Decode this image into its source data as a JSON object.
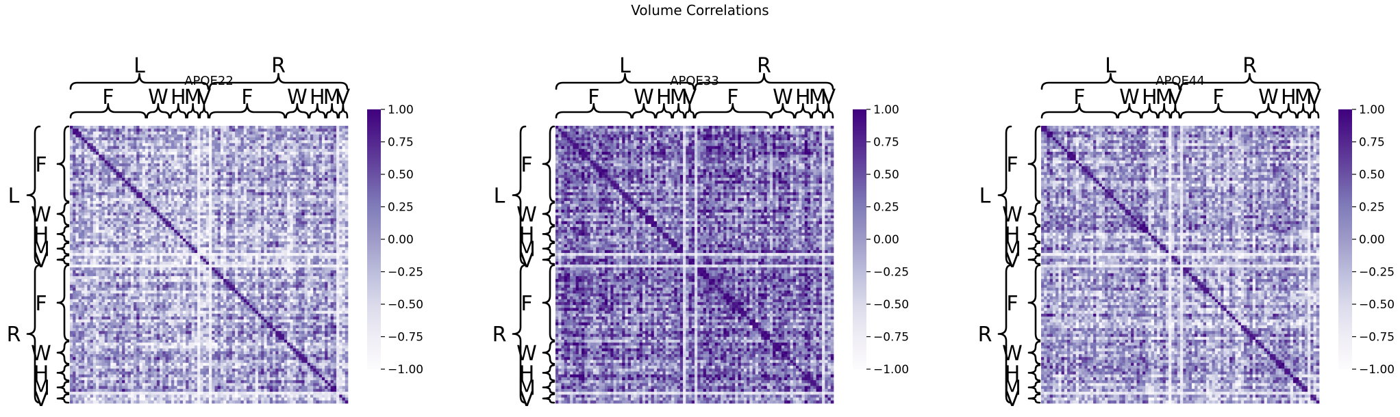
{
  "figure": {
    "title": "Volume Correlations"
  },
  "chart_data": [
    {
      "type": "heatmap",
      "title": "APOE22",
      "colormap": "Purples",
      "clim": [
        -1,
        1
      ],
      "colorbar_ticks": [
        "1.00",
        "0.75",
        "0.50",
        "0.25",
        "0.00",
        "−0.25",
        "−0.50",
        "−0.75",
        "−1.00"
      ],
      "hemispheres": [
        "L",
        "R"
      ],
      "region_groups": [
        "F",
        "W",
        "H",
        "M",
        "V"
      ],
      "mean_intensity": 0.4,
      "legend": "right"
    },
    {
      "type": "heatmap",
      "title": "APOE33",
      "colormap": "Purples",
      "clim": [
        -1,
        1
      ],
      "colorbar_ticks": [
        "1.00",
        "0.75",
        "0.50",
        "0.25",
        "0.00",
        "−0.25",
        "−0.50",
        "−0.75",
        "−1.00"
      ],
      "hemispheres": [
        "L",
        "R"
      ],
      "region_groups": [
        "F",
        "W",
        "H",
        "M",
        "V"
      ],
      "mean_intensity": 0.6,
      "legend": "right"
    },
    {
      "type": "heatmap",
      "title": "APOE44",
      "colormap": "Purples",
      "clim": [
        -1,
        1
      ],
      "colorbar_ticks": [
        "1.00",
        "0.75",
        "0.50",
        "0.25",
        "0.00",
        "−0.25",
        "−0.50",
        "−0.75",
        "−1.00"
      ],
      "hemispheres": [
        "L",
        "R"
      ],
      "region_groups": [
        "F",
        "W",
        "H",
        "M",
        "V"
      ],
      "mean_intensity": 0.45,
      "legend": "right"
    }
  ],
  "colors": {
    "colormap_high": "#3f007d",
    "colormap_mid": "#9e9ac8",
    "colormap_low": "#fcfbfd",
    "text": "#000000"
  }
}
